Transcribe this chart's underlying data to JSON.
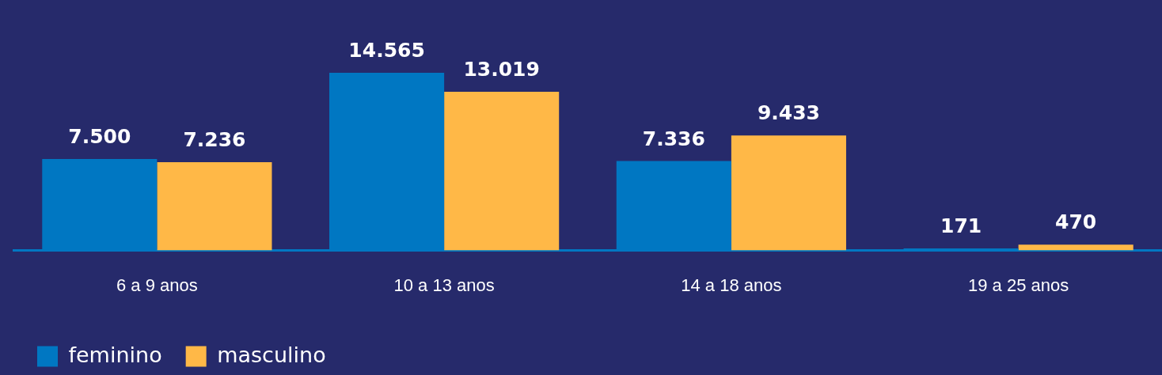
{
  "chart_data": {
    "type": "bar",
    "categories": [
      "6 a 9 anos",
      "10 a 13 anos",
      "14 a 18 anos",
      "19 a 25 anos"
    ],
    "series": [
      {
        "name": "feminino",
        "color": "#0077c2",
        "values": [
          7500,
          14565,
          7336,
          171
        ],
        "value_labels": [
          "7.500",
          "14.565",
          "7.336",
          "171"
        ]
      },
      {
        "name": "masculino",
        "color": "#ffb847",
        "values": [
          7236,
          13019,
          9433,
          470
        ],
        "value_labels": [
          "7.236",
          "13.019",
          "9.433",
          "470"
        ]
      }
    ],
    "grid": false,
    "legend": "bottom left",
    "tick_labels": "x"
  }
}
